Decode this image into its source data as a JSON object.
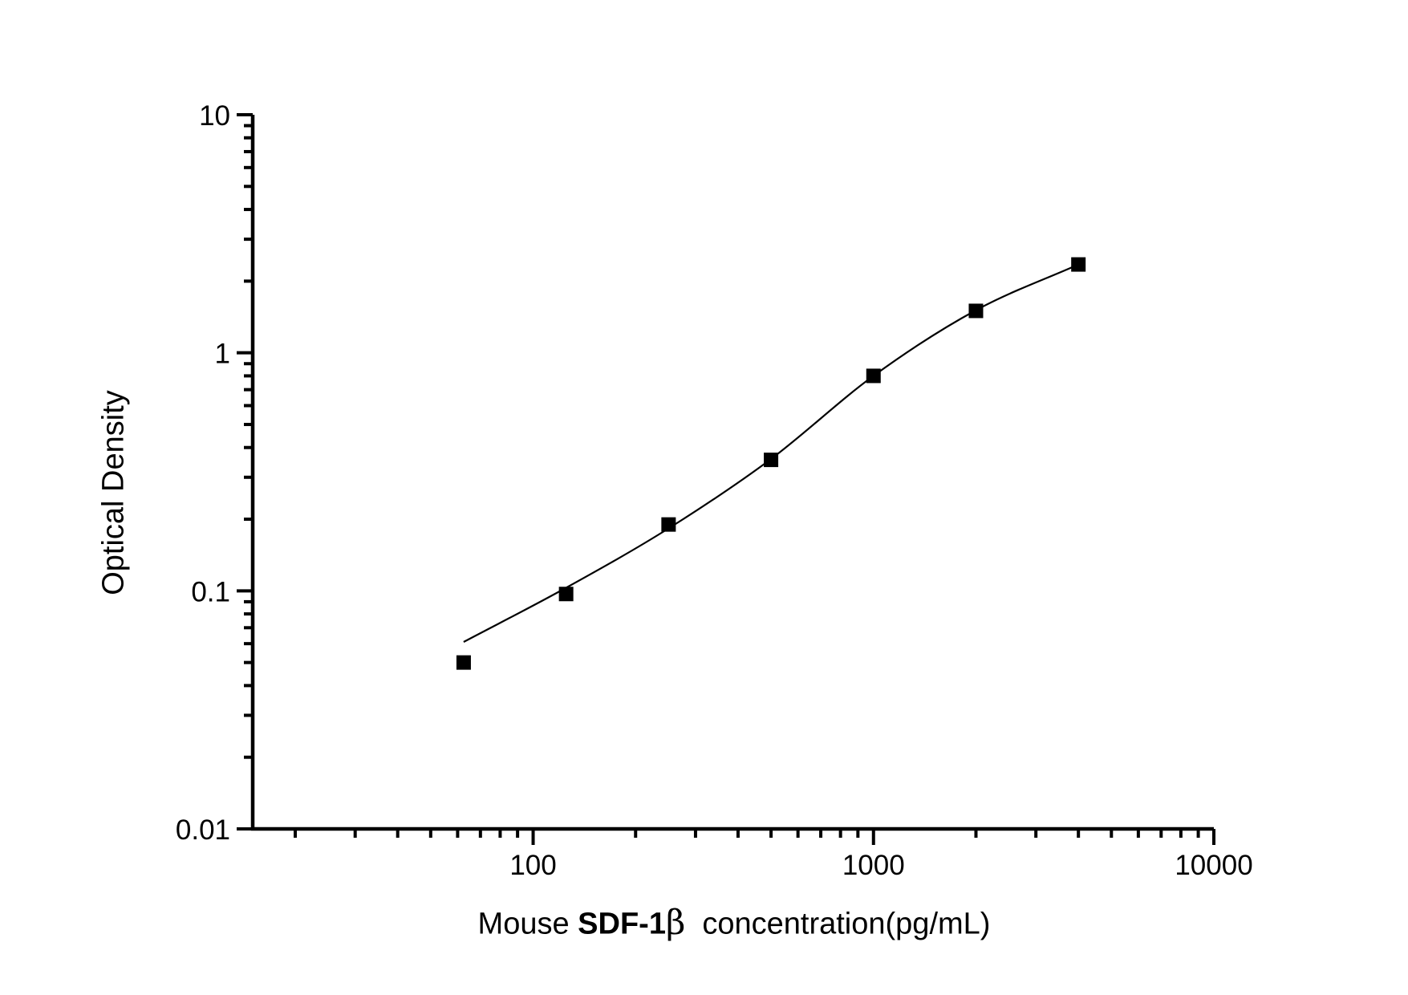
{
  "figure": {
    "background": "#ffffff",
    "foreground": "#000000"
  },
  "chart_data": {
    "type": "scatter",
    "title": "",
    "xlabel": "Mouse SDF-1β  concentration(pg/mL)",
    "xlabel_parts": {
      "prefix": "Mouse ",
      "analyte": "SDF-1",
      "symbol": "β",
      "suffix": "  concentration(pg/mL)"
    },
    "ylabel": "Optical Density",
    "x_scale": "log",
    "y_scale": "log",
    "xlim": [
      15,
      10000
    ],
    "ylim": [
      0.01,
      10
    ],
    "x_ticks": [
      100,
      1000,
      10000
    ],
    "x_tick_labels": [
      "100",
      "1000",
      "10000"
    ],
    "y_ticks": [
      10,
      1,
      0.1,
      0.01
    ],
    "y_tick_labels": [
      "10",
      "1",
      "0.1",
      "0.01"
    ],
    "grid": false,
    "legend": false,
    "series": [
      {
        "name": "standard-points",
        "type": "scatter",
        "marker": "square",
        "color": "#000000",
        "x": [
          62.5,
          125,
          250,
          500,
          1000,
          2000,
          4000
        ],
        "y": [
          0.05,
          0.097,
          0.19,
          0.355,
          0.8,
          1.5,
          2.35
        ]
      },
      {
        "name": "fitted-curve",
        "type": "line",
        "color": "#000000",
        "x": [
          62.5,
          125,
          250,
          500,
          1000,
          2000,
          4000
        ],
        "y": [
          0.061,
          0.103,
          0.183,
          0.358,
          0.8,
          1.51,
          2.35
        ]
      }
    ]
  }
}
